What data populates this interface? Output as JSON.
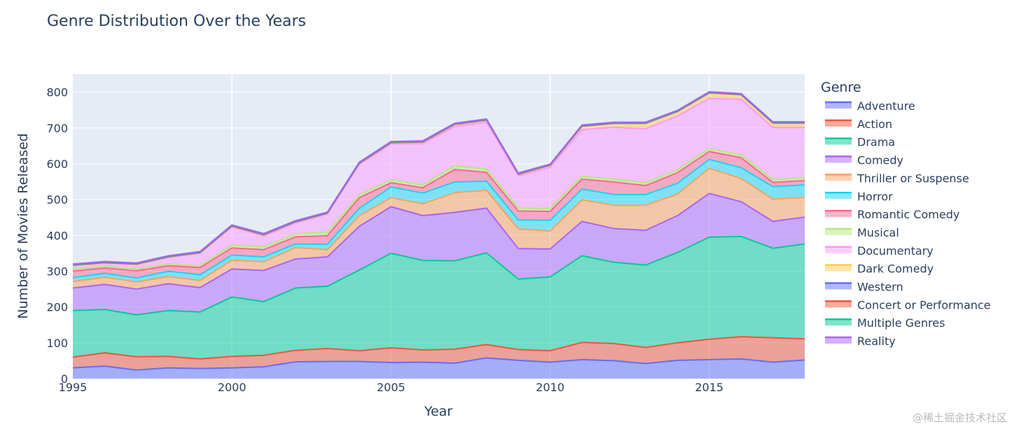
{
  "chart_data": {
    "type": "area",
    "stacked": true,
    "title": "Genre Distribution Over the Years",
    "xlabel": "Year",
    "ylabel": "Number of Movies Released",
    "xlim": [
      1995,
      2018
    ],
    "ylim": [
      0,
      850
    ],
    "x_ticks": [
      1995,
      2000,
      2005,
      2010,
      2015
    ],
    "y_ticks": [
      0,
      100,
      200,
      300,
      400,
      500,
      600,
      700,
      800
    ],
    "legend_title": "Genre",
    "legend_position": "right",
    "x": [
      1995,
      1996,
      1997,
      1998,
      1999,
      2000,
      2001,
      2002,
      2003,
      2004,
      2005,
      2006,
      2007,
      2008,
      2009,
      2010,
      2011,
      2012,
      2013,
      2014,
      2015,
      2016,
      2017,
      2018
    ],
    "series": [
      {
        "name": "Adventure",
        "color": "#636efa",
        "values": [
          30,
          35,
          24,
          30,
          28,
          30,
          33,
          47,
          48,
          48,
          45,
          46,
          43,
          58,
          51,
          46,
          53,
          50,
          42,
          51,
          53,
          55,
          46,
          52
        ]
      },
      {
        "name": "Action",
        "color": "#ef553b",
        "values": [
          30,
          37,
          37,
          32,
          27,
          32,
          32,
          32,
          36,
          30,
          41,
          34,
          39,
          37,
          30,
          32,
          48,
          48,
          45,
          49,
          57,
          62,
          68,
          59
        ]
      },
      {
        "name": "Drama",
        "color": "#00cc96",
        "values": [
          130,
          121,
          117,
          128,
          131,
          166,
          150,
          174,
          174,
          225,
          264,
          250,
          247,
          256,
          197,
          206,
          242,
          227,
          230,
          252,
          285,
          280,
          250,
          265
        ]
      },
      {
        "name": "Comedy",
        "color": "#ab63fa",
        "values": [
          63,
          70,
          72,
          75,
          68,
          78,
          87,
          81,
          82,
          122,
          130,
          125,
          135,
          125,
          85,
          78,
          96,
          94,
          97,
          103,
          122,
          97,
          75,
          75
        ]
      },
      {
        "name": "Thriller or Suspense",
        "color": "#ffa15a",
        "values": [
          18,
          20,
          20,
          20,
          20,
          25,
          24,
          32,
          20,
          30,
          25,
          33,
          55,
          50,
          55,
          50,
          60,
          65,
          70,
          60,
          70,
          65,
          62,
          55
        ]
      },
      {
        "name": "Horror",
        "color": "#19d3f3",
        "values": [
          11,
          11,
          11,
          15,
          16,
          14,
          14,
          10,
          15,
          20,
          30,
          30,
          30,
          25,
          25,
          30,
          30,
          30,
          30,
          30,
          25,
          30,
          35,
          35
        ]
      },
      {
        "name": "Romantic Comedy",
        "color": "#ff6692",
        "values": [
          18,
          15,
          20,
          15,
          20,
          20,
          20,
          20,
          24,
          30,
          12,
          15,
          35,
          25,
          25,
          25,
          28,
          35,
          25,
          30,
          22,
          28,
          12,
          12
        ]
      },
      {
        "name": "Musical",
        "color": "#b6e880",
        "values": [
          5,
          5,
          5,
          5,
          5,
          8,
          8,
          8,
          10,
          8,
          8,
          8,
          10,
          10,
          8,
          8,
          8,
          8,
          8,
          8,
          8,
          8,
          8,
          8
        ]
      },
      {
        "name": "Documentary",
        "color": "#ff97ff",
        "values": [
          10,
          8,
          12,
          18,
          35,
          50,
          30,
          30,
          50,
          85,
          100,
          115,
          110,
          130,
          90,
          115,
          130,
          145,
          150,
          150,
          140,
          155,
          145,
          140
        ]
      },
      {
        "name": "Dark Comedy",
        "color": "#fecb52",
        "values": [
          1,
          1,
          1,
          1,
          1,
          2,
          3,
          3,
          2,
          2,
          3,
          4,
          5,
          5,
          4,
          5,
          9,
          10,
          15,
          12,
          15,
          12,
          12,
          12
        ]
      },
      {
        "name": "Western",
        "color": "#636efa",
        "values": [
          1,
          1,
          1,
          1,
          1,
          1,
          1,
          1,
          1,
          1,
          1,
          1,
          1,
          1,
          1,
          1,
          1,
          1,
          1,
          1,
          1,
          1,
          1,
          1
        ]
      },
      {
        "name": "Concert or Performance",
        "color": "#ef553b",
        "values": [
          1,
          1,
          1,
          1,
          1,
          1,
          1,
          1,
          1,
          1,
          1,
          1,
          1,
          1,
          1,
          1,
          1,
          1,
          1,
          1,
          1,
          1,
          1,
          1
        ]
      },
      {
        "name": "Multiple Genres",
        "color": "#00cc96",
        "values": [
          1,
          1,
          1,
          1,
          1,
          1,
          1,
          1,
          1,
          1,
          1,
          1,
          1,
          1,
          1,
          1,
          1,
          1,
          1,
          1,
          1,
          1,
          1,
          1
        ]
      },
      {
        "name": "Reality",
        "color": "#ab63fa",
        "values": [
          1,
          1,
          1,
          1,
          1,
          1,
          1,
          1,
          1,
          1,
          1,
          1,
          1,
          1,
          1,
          1,
          1,
          1,
          1,
          1,
          1,
          1,
          1,
          1
        ]
      }
    ]
  },
  "watermark": "@稀土掘金技术社区"
}
